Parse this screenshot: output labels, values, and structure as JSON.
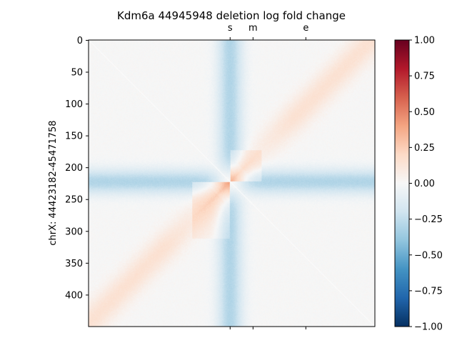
{
  "chart_data": {
    "type": "heatmap",
    "title": "Kdm6a 44945948 deletion log fold change",
    "ylabel": "chrX: 44423182-45471758",
    "xlabel": "",
    "matrix_size": 450,
    "y_ticks": [
      0,
      50,
      100,
      150,
      200,
      250,
      300,
      350,
      400
    ],
    "y_tick_labels": [
      "0",
      "50",
      "100",
      "150",
      "200",
      "250",
      "300",
      "350",
      "400"
    ],
    "top_markers": [
      {
        "label": "s",
        "pos": 222
      },
      {
        "label": "m",
        "pos": 258
      },
      {
        "label": "e",
        "pos": 341
      }
    ],
    "colorbar": {
      "cmap": "RdBu_r",
      "vmin": -1.0,
      "vmax": 1.0,
      "ticks": [
        1.0,
        0.75,
        0.5,
        0.25,
        0.0,
        -0.25,
        -0.5,
        -0.75,
        -1.0
      ],
      "tick_labels": [
        "1.00",
        "0.75",
        "0.50",
        "0.25",
        "0.00",
        "−0.25",
        "−0.50",
        "−0.75",
        "−1.00"
      ]
    },
    "deletion_row": 222,
    "features": {
      "cross_arms_value": -0.3,
      "upper_block_value": 0.3,
      "lower_block_value": 0.35,
      "diagonal_band_value": 0.15,
      "diagonal_masked": true
    },
    "grid": false
  }
}
